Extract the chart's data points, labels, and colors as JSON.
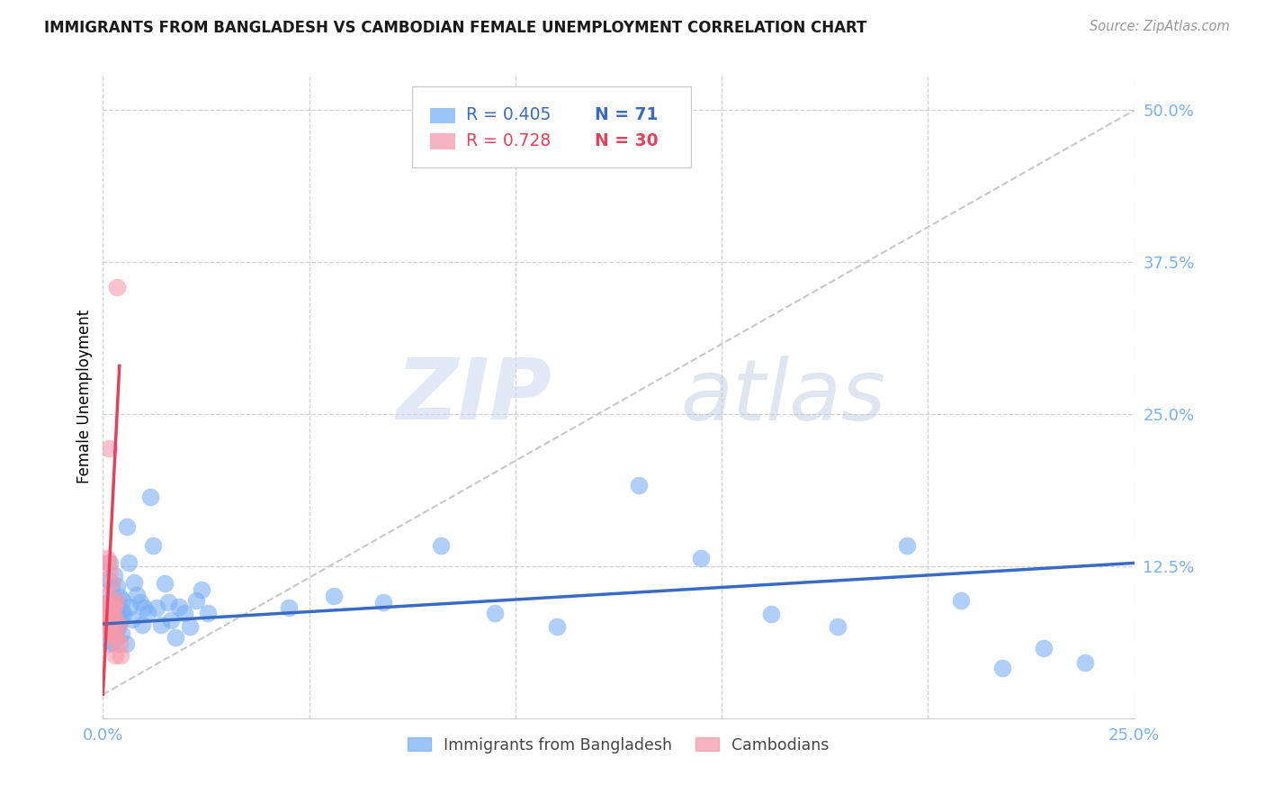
{
  "title": "IMMIGRANTS FROM BANGLADESH VS CAMBODIAN FEMALE UNEMPLOYMENT CORRELATION CHART",
  "source": "Source: ZipAtlas.com",
  "ylabel": "Female Unemployment",
  "ytick_labels": [
    "50.0%",
    "37.5%",
    "25.0%",
    "12.5%"
  ],
  "ytick_values": [
    0.5,
    0.375,
    0.25,
    0.125
  ],
  "xtick_labels": [
    "0.0%",
    "",
    "",
    "",
    "",
    "25.0%"
  ],
  "xtick_values": [
    0.0,
    0.05,
    0.1,
    0.15,
    0.2,
    0.25
  ],
  "xlim": [
    0.0,
    0.25
  ],
  "ylim": [
    0.0,
    0.53
  ],
  "legend_blue_r": "R = 0.405",
  "legend_blue_n": "N = 71",
  "legend_pink_r": "R = 0.728",
  "legend_pink_n": "N = 30",
  "legend_blue_label": "Immigrants from Bangladesh",
  "legend_pink_label": "Cambodians",
  "watermark_zip": "ZIP",
  "watermark_atlas": "atlas",
  "title_color": "#1a1a1a",
  "source_color": "#999999",
  "grid_color": "#d0d0d0",
  "blue_color": "#7ab0f5",
  "pink_color": "#f59aaa",
  "blue_line_color": "#3a6bc4",
  "pink_line_color": "#e8405a",
  "gray_line_color": "#c8c8c8",
  "tick_color": "#7ab0f5",
  "blue_scatter": [
    [
      0.0008,
      0.082
    ],
    [
      0.001,
      0.095
    ],
    [
      0.0012,
      0.072
    ],
    [
      0.0013,
      0.115
    ],
    [
      0.0015,
      0.088
    ],
    [
      0.0016,
      0.062
    ],
    [
      0.0017,
      0.128
    ],
    [
      0.0018,
      0.083
    ],
    [
      0.0019,
      0.098
    ],
    [
      0.002,
      0.076
    ],
    [
      0.0021,
      0.108
    ],
    [
      0.0022,
      0.091
    ],
    [
      0.0023,
      0.08
    ],
    [
      0.0024,
      0.063
    ],
    [
      0.0025,
      0.092
    ],
    [
      0.0026,
      0.077
    ],
    [
      0.0028,
      0.118
    ],
    [
      0.0029,
      0.09
    ],
    [
      0.003,
      0.086
    ],
    [
      0.0031,
      0.071
    ],
    [
      0.0033,
      0.109
    ],
    [
      0.0034,
      0.096
    ],
    [
      0.0035,
      0.084
    ],
    [
      0.0036,
      0.075
    ],
    [
      0.0038,
      0.091
    ],
    [
      0.004,
      0.1
    ],
    [
      0.0042,
      0.081
    ],
    [
      0.0044,
      0.07
    ],
    [
      0.0045,
      0.089
    ],
    [
      0.0048,
      0.097
    ],
    [
      0.005,
      0.086
    ],
    [
      0.0055,
      0.062
    ],
    [
      0.0058,
      0.158
    ],
    [
      0.0062,
      0.128
    ],
    [
      0.0065,
      0.092
    ],
    [
      0.007,
      0.082
    ],
    [
      0.0075,
      0.112
    ],
    [
      0.0082,
      0.102
    ],
    [
      0.009,
      0.096
    ],
    [
      0.0095,
      0.077
    ],
    [
      0.01,
      0.091
    ],
    [
      0.0108,
      0.087
    ],
    [
      0.0115,
      0.182
    ],
    [
      0.0122,
      0.142
    ],
    [
      0.013,
      0.091
    ],
    [
      0.014,
      0.077
    ],
    [
      0.015,
      0.111
    ],
    [
      0.0158,
      0.096
    ],
    [
      0.0165,
      0.081
    ],
    [
      0.0175,
      0.067
    ],
    [
      0.0185,
      0.092
    ],
    [
      0.0198,
      0.087
    ],
    [
      0.021,
      0.076
    ],
    [
      0.0225,
      0.097
    ],
    [
      0.024,
      0.106
    ],
    [
      0.0255,
      0.087
    ],
    [
      0.045,
      0.091
    ],
    [
      0.056,
      0.101
    ],
    [
      0.068,
      0.096
    ],
    [
      0.082,
      0.142
    ],
    [
      0.095,
      0.087
    ],
    [
      0.11,
      0.076
    ],
    [
      0.13,
      0.192
    ],
    [
      0.145,
      0.132
    ],
    [
      0.162,
      0.086
    ],
    [
      0.178,
      0.076
    ],
    [
      0.195,
      0.142
    ],
    [
      0.208,
      0.097
    ],
    [
      0.218,
      0.042
    ],
    [
      0.228,
      0.058
    ],
    [
      0.238,
      0.046
    ]
  ],
  "pink_scatter": [
    [
      0.0005,
      0.081
    ],
    [
      0.0008,
      0.092
    ],
    [
      0.0009,
      0.072
    ],
    [
      0.001,
      0.132
    ],
    [
      0.0011,
      0.102
    ],
    [
      0.0012,
      0.128
    ],
    [
      0.0013,
      0.078
    ],
    [
      0.0014,
      0.222
    ],
    [
      0.0015,
      0.082
    ],
    [
      0.0016,
      0.122
    ],
    [
      0.0017,
      0.092
    ],
    [
      0.0018,
      0.087
    ],
    [
      0.0019,
      0.077
    ],
    [
      0.002,
      0.092
    ],
    [
      0.0021,
      0.072
    ],
    [
      0.0022,
      0.112
    ],
    [
      0.0023,
      0.082
    ],
    [
      0.0024,
      0.096
    ],
    [
      0.0025,
      0.066
    ],
    [
      0.0026,
      0.086
    ],
    [
      0.0027,
      0.072
    ],
    [
      0.0028,
      0.092
    ],
    [
      0.0029,
      0.052
    ],
    [
      0.003,
      0.082
    ],
    [
      0.0032,
      0.097
    ],
    [
      0.0033,
      0.067
    ],
    [
      0.0035,
      0.355
    ],
    [
      0.0038,
      0.077
    ],
    [
      0.004,
      0.062
    ],
    [
      0.0042,
      0.052
    ]
  ],
  "blue_trendline_x": [
    0.0,
    0.25
  ],
  "blue_trendline_y": [
    0.078,
    0.128
  ],
  "pink_trendline_x": [
    0.0,
    0.004
  ],
  "pink_trendline_y": [
    0.02,
    0.29
  ],
  "gray_trendline_x": [
    0.0,
    0.25
  ],
  "gray_trendline_y": [
    0.02,
    0.5
  ]
}
